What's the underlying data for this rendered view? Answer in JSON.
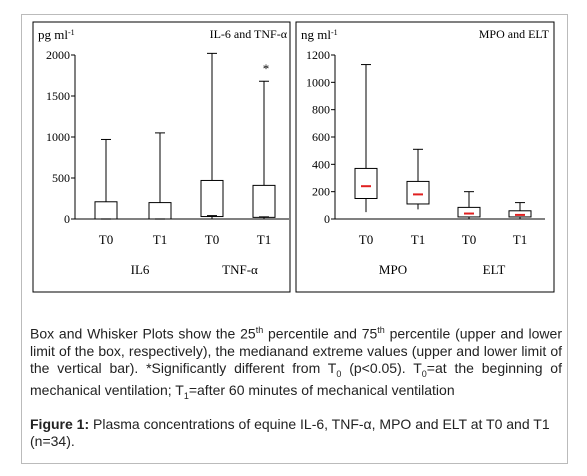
{
  "chart_data": [
    {
      "type": "boxplot",
      "panel_label": "IL-6 and TNF-α",
      "unit_text": "pg ml",
      "unit_sup": "-1",
      "ylim": [
        0,
        2000
      ],
      "yticks": [
        0,
        500,
        1000,
        1500,
        2000
      ],
      "tick_labels": [
        "T0",
        "T1",
        "T0",
        "T1"
      ],
      "group_labels": [
        "IL6",
        "TNF-α"
      ],
      "boxes": [
        {
          "q1": 0,
          "q3": 210,
          "median": 0,
          "min": 0,
          "max": 970,
          "mark": ""
        },
        {
          "q1": 0,
          "q3": 200,
          "median": 0,
          "min": 0,
          "max": 1050,
          "mark": ""
        },
        {
          "q1": 30,
          "q3": 470,
          "median": 40,
          "min": 0,
          "max": 2020,
          "mark": ""
        },
        {
          "q1": 20,
          "q3": 410,
          "median": 25,
          "min": 0,
          "max": 1680,
          "mark": "*"
        }
      ]
    },
    {
      "type": "boxplot",
      "panel_label": "MPO and ELT",
      "unit_text": "ng ml",
      "unit_sup": "-1",
      "ylim": [
        0,
        1200
      ],
      "yticks": [
        0,
        200,
        400,
        600,
        800,
        1000,
        1200
      ],
      "tick_labels": [
        "T0",
        "T1",
        "T0",
        "T1"
      ],
      "group_labels": [
        "MPO",
        "ELT"
      ],
      "median_color": "#e02020",
      "boxes": [
        {
          "q1": 150,
          "q3": 370,
          "median": 240,
          "min": 50,
          "max": 1130
        },
        {
          "q1": 110,
          "q3": 275,
          "median": 180,
          "min": 70,
          "max": 510
        },
        {
          "q1": 15,
          "q3": 85,
          "median": 40,
          "min": 0,
          "max": 200
        },
        {
          "q1": 15,
          "q3": 60,
          "median": 30,
          "min": 0,
          "max": 120
        }
      ]
    }
  ],
  "caption": {
    "p1_a": "Box and Whisker Plots show the 25",
    "p1_sup1": "th",
    "p1_b": " percentile and 75",
    "p1_sup2": "th",
    "p1_c": " percentile (upper and lower limit of the box, respectively), the medianand extreme values (upper and lower limit of the vertical bar). *Significantly different from T",
    "p1_sub1": "0",
    "p1_d": " (p<0.05). T",
    "p1_sub2": "0",
    "p1_e": "=at the beginning of mechanical ventilation; T",
    "p1_sub3": "1",
    "p1_f": "=after 60 minutes of mechanical ventilation",
    "fig_label": "Figure 1:",
    "fig_text": " Plasma concentrations of equine IL-6, TNF-α, MPO and ELT at T0 and T1 (n=34)."
  }
}
